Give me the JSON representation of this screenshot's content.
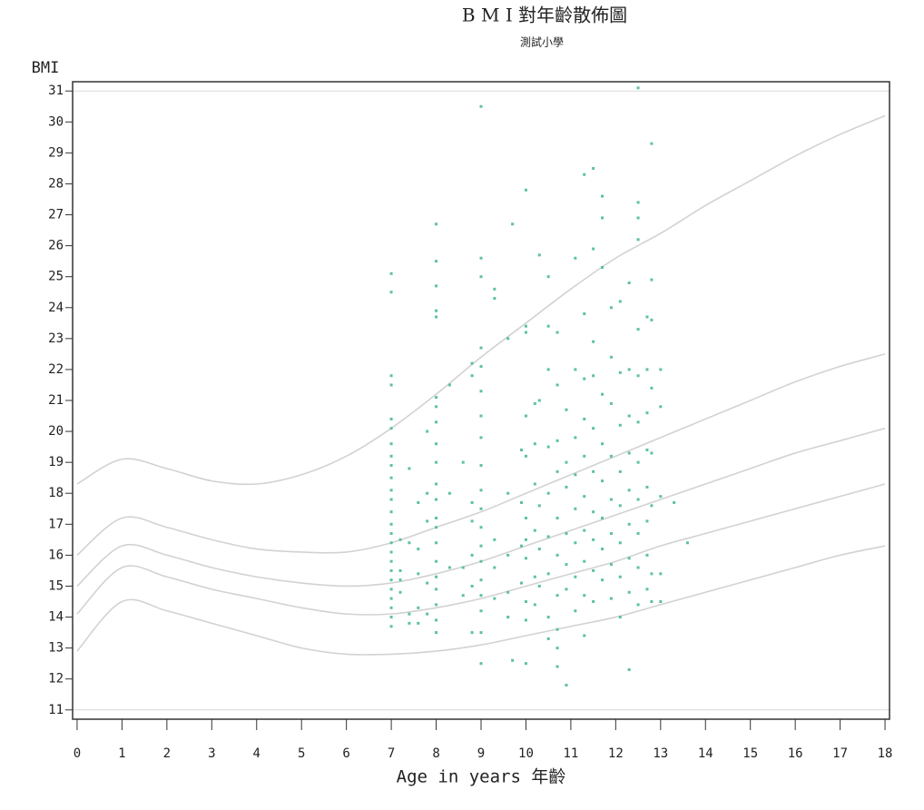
{
  "chart_data": {
    "type": "scatter",
    "title": "B M I 對年齡散佈圖",
    "subtitle": "測試小學",
    "y_label": "BMI",
    "x_label": "Age in years 年齡",
    "xlim": [
      -0.1,
      18.1
    ],
    "ylim": [
      10.7,
      31.3
    ],
    "xticks": [
      0,
      1,
      2,
      3,
      4,
      5,
      6,
      7,
      8,
      9,
      10,
      11,
      12,
      13,
      14,
      15,
      16,
      17,
      18
    ],
    "yticks": [
      11,
      12,
      13,
      14,
      15,
      16,
      17,
      18,
      19,
      20,
      21,
      22,
      23,
      24,
      25,
      26,
      27,
      28,
      29,
      30,
      31
    ],
    "reference_lines": [
      11,
      31
    ],
    "color": "#5cc29b",
    "x": [
      7,
      7,
      7,
      7,
      7,
      7,
      7,
      7,
      7,
      7,
      7,
      7,
      7,
      7,
      7,
      7,
      7,
      7,
      7,
      7,
      7,
      7,
      7,
      7,
      7,
      7.2,
      7.2,
      7.2,
      7.2,
      7.4,
      7.4,
      7.4,
      7.4,
      7.6,
      7.6,
      7.6,
      7.6,
      7.6,
      7.8,
      7.8,
      7.8,
      7.8,
      7.8,
      8,
      8,
      8,
      8,
      8,
      8,
      8,
      8,
      8,
      8,
      8,
      8,
      8,
      8,
      8,
      8,
      8,
      8,
      8,
      8,
      8,
      8.3,
      8.3,
      8.3,
      8.6,
      8.6,
      8.6,
      8.8,
      8.8,
      8.8,
      8.8,
      8.8,
      8.8,
      8.8,
      9,
      9,
      9,
      9,
      9,
      9,
      9,
      9,
      9,
      9,
      9,
      9,
      9,
      9,
      9,
      9,
      9,
      9,
      9,
      9.3,
      9.3,
      9.3,
      9.3,
      9.3,
      9.6,
      9.6,
      9.6,
      9.6,
      9.6,
      9.7,
      9.7,
      9.9,
      9.9,
      9.9,
      9.9,
      10,
      10,
      10,
      10,
      10,
      10,
      10,
      10,
      10,
      10,
      10,
      10.2,
      10.2,
      10.2,
      10.2,
      10.2,
      10.2,
      10.3,
      10.3,
      10.3,
      10.3,
      10.3,
      10.5,
      10.5,
      10.5,
      10.5,
      10.5,
      10.5,
      10.5,
      10.5,
      10.5,
      10.7,
      10.7,
      10.7,
      10.7,
      10.7,
      10.7,
      10.7,
      10.7,
      10.7,
      10.7,
      10.9,
      10.9,
      10.9,
      10.9,
      10.9,
      10.9,
      10.9,
      11.1,
      11.1,
      11.1,
      11.1,
      11.1,
      11.1,
      11.1,
      11.1,
      11.3,
      11.3,
      11.3,
      11.3,
      11.3,
      11.3,
      11.3,
      11.3,
      11.3,
      11.3,
      11.5,
      11.5,
      11.5,
      11.5,
      11.5,
      11.5,
      11.5,
      11.5,
      11.5,
      11.5,
      11.7,
      11.7,
      11.7,
      11.7,
      11.7,
      11.7,
      11.7,
      11.7,
      11.7,
      11.9,
      11.9,
      11.9,
      11.9,
      11.9,
      11.9,
      11.9,
      11.9,
      12.1,
      12.1,
      12.1,
      12.1,
      12.1,
      12.1,
      12.1,
      12.1,
      12.3,
      12.3,
      12.3,
      12.3,
      12.3,
      12.3,
      12.3,
      12.3,
      12.3,
      12.5,
      12.5,
      12.5,
      12.5,
      12.5,
      12.5,
      12.5,
      12.5,
      12.5,
      12.5,
      12.5,
      12.5,
      12.7,
      12.7,
      12.7,
      12.7,
      12.7,
      12.7,
      12.7,
      12.7,
      12.8,
      12.8,
      12.8,
      12.8,
      12.8,
      12.8,
      12.8,
      12.8,
      13,
      13,
      13,
      13,
      13,
      13.3,
      13.6
    ],
    "values": [
      25.1,
      24.5,
      21.8,
      21.5,
      20.4,
      20.1,
      19.6,
      19.2,
      18.9,
      18.5,
      18.1,
      17.8,
      17.4,
      17.0,
      16.7,
      16.4,
      16.1,
      15.8,
      15.5,
      15.2,
      14.9,
      14.6,
      14.3,
      14.0,
      13.7,
      15.2,
      14.8,
      16.5,
      15.5,
      18.8,
      16.4,
      14.1,
      13.8,
      17.7,
      16.2,
      15.4,
      14.3,
      13.8,
      18.0,
      17.1,
      15.1,
      14.1,
      20.0,
      26.7,
      25.5,
      24.7,
      23.9,
      23.7,
      21.1,
      20.8,
      20.3,
      19.6,
      19.0,
      18.3,
      17.8,
      17.2,
      16.9,
      16.4,
      15.8,
      15.3,
      14.9,
      14.4,
      13.9,
      13.5,
      15.6,
      18.0,
      21.5,
      19.0,
      14.7,
      15.6,
      22.2,
      21.8,
      17.7,
      17.1,
      16.0,
      15.0,
      13.5,
      30.5,
      25.6,
      25.0,
      22.7,
      22.1,
      21.3,
      20.5,
      19.8,
      18.9,
      18.1,
      17.5,
      16.9,
      16.3,
      15.8,
      15.2,
      14.7,
      14.2,
      13.5,
      12.5,
      24.6,
      24.3,
      16.5,
      15.6,
      14.6,
      23.0,
      18.0,
      16.0,
      14.8,
      14.0,
      26.7,
      12.6,
      19.4,
      17.7,
      16.3,
      15.1,
      27.8,
      23.4,
      23.2,
      20.5,
      19.2,
      17.2,
      16.5,
      15.9,
      14.5,
      13.9,
      12.5,
      20.9,
      19.6,
      18.3,
      16.8,
      15.3,
      14.4,
      25.7,
      21.0,
      17.6,
      16.2,
      15.0,
      25.0,
      23.4,
      22.0,
      19.5,
      18.0,
      16.6,
      15.4,
      14.0,
      13.3,
      23.2,
      21.5,
      19.7,
      18.7,
      17.2,
      16.0,
      14.7,
      13.6,
      13.0,
      12.4,
      20.7,
      19.0,
      18.2,
      16.7,
      15.7,
      14.9,
      11.8,
      25.6,
      22.0,
      19.8,
      18.6,
      17.5,
      16.4,
      15.3,
      14.2,
      28.3,
      23.8,
      21.7,
      20.4,
      19.2,
      17.9,
      16.8,
      15.8,
      14.7,
      13.4,
      28.5,
      25.9,
      22.9,
      21.8,
      20.1,
      18.7,
      17.4,
      16.5,
      15.5,
      14.5,
      27.6,
      26.9,
      25.3,
      21.2,
      19.6,
      18.4,
      17.2,
      16.2,
      15.2,
      24.0,
      22.4,
      20.9,
      19.2,
      17.8,
      16.7,
      15.7,
      14.6,
      24.2,
      21.9,
      20.2,
      18.7,
      17.6,
      16.4,
      15.3,
      14.0,
      24.8,
      22.0,
      20.5,
      19.3,
      18.1,
      17.0,
      15.9,
      14.8,
      12.3,
      31.1,
      27.4,
      26.9,
      26.2,
      23.3,
      21.8,
      20.3,
      19.0,
      17.8,
      16.7,
      15.6,
      14.4,
      23.7,
      22.0,
      20.6,
      19.4,
      18.2,
      17.1,
      16.0,
      14.9,
      29.3,
      24.9,
      23.6,
      21.4,
      19.3,
      17.6,
      15.4,
      14.5,
      22.0,
      20.8,
      17.9,
      15.4,
      14.5,
      17.7,
      16.4
    ],
    "curves": {
      "color": "#d2d2d2",
      "x": [
        0,
        1,
        2,
        3,
        4,
        5,
        6,
        7,
        8,
        9,
        10,
        11,
        12,
        13,
        14,
        15,
        16,
        17,
        18
      ],
      "series": [
        {
          "values": [
            18.3,
            19.1,
            18.8,
            18.4,
            18.3,
            18.6,
            19.2,
            20.1,
            21.2,
            22.4,
            23.5,
            24.6,
            25.6,
            26.4,
            27.3,
            28.1,
            28.9,
            29.6,
            30.2
          ]
        },
        {
          "values": [
            16.0,
            17.2,
            16.9,
            16.5,
            16.2,
            16.1,
            16.1,
            16.4,
            16.9,
            17.4,
            18.0,
            18.6,
            19.2,
            19.8,
            20.4,
            21.0,
            21.6,
            22.1,
            22.5
          ]
        },
        {
          "values": [
            15.0,
            16.3,
            16.0,
            15.6,
            15.3,
            15.1,
            15.0,
            15.1,
            15.4,
            15.8,
            16.3,
            16.8,
            17.3,
            17.8,
            18.3,
            18.8,
            19.3,
            19.7,
            20.1
          ]
        },
        {
          "values": [
            14.1,
            15.6,
            15.3,
            14.9,
            14.6,
            14.3,
            14.1,
            14.1,
            14.3,
            14.6,
            15.0,
            15.4,
            15.8,
            16.3,
            16.7,
            17.1,
            17.5,
            17.9,
            18.3
          ]
        },
        {
          "values": [
            12.9,
            14.5,
            14.2,
            13.8,
            13.4,
            13.0,
            12.8,
            12.8,
            12.9,
            13.1,
            13.4,
            13.7,
            14.0,
            14.4,
            14.8,
            15.2,
            15.6,
            16.0,
            16.3
          ]
        }
      ]
    }
  }
}
